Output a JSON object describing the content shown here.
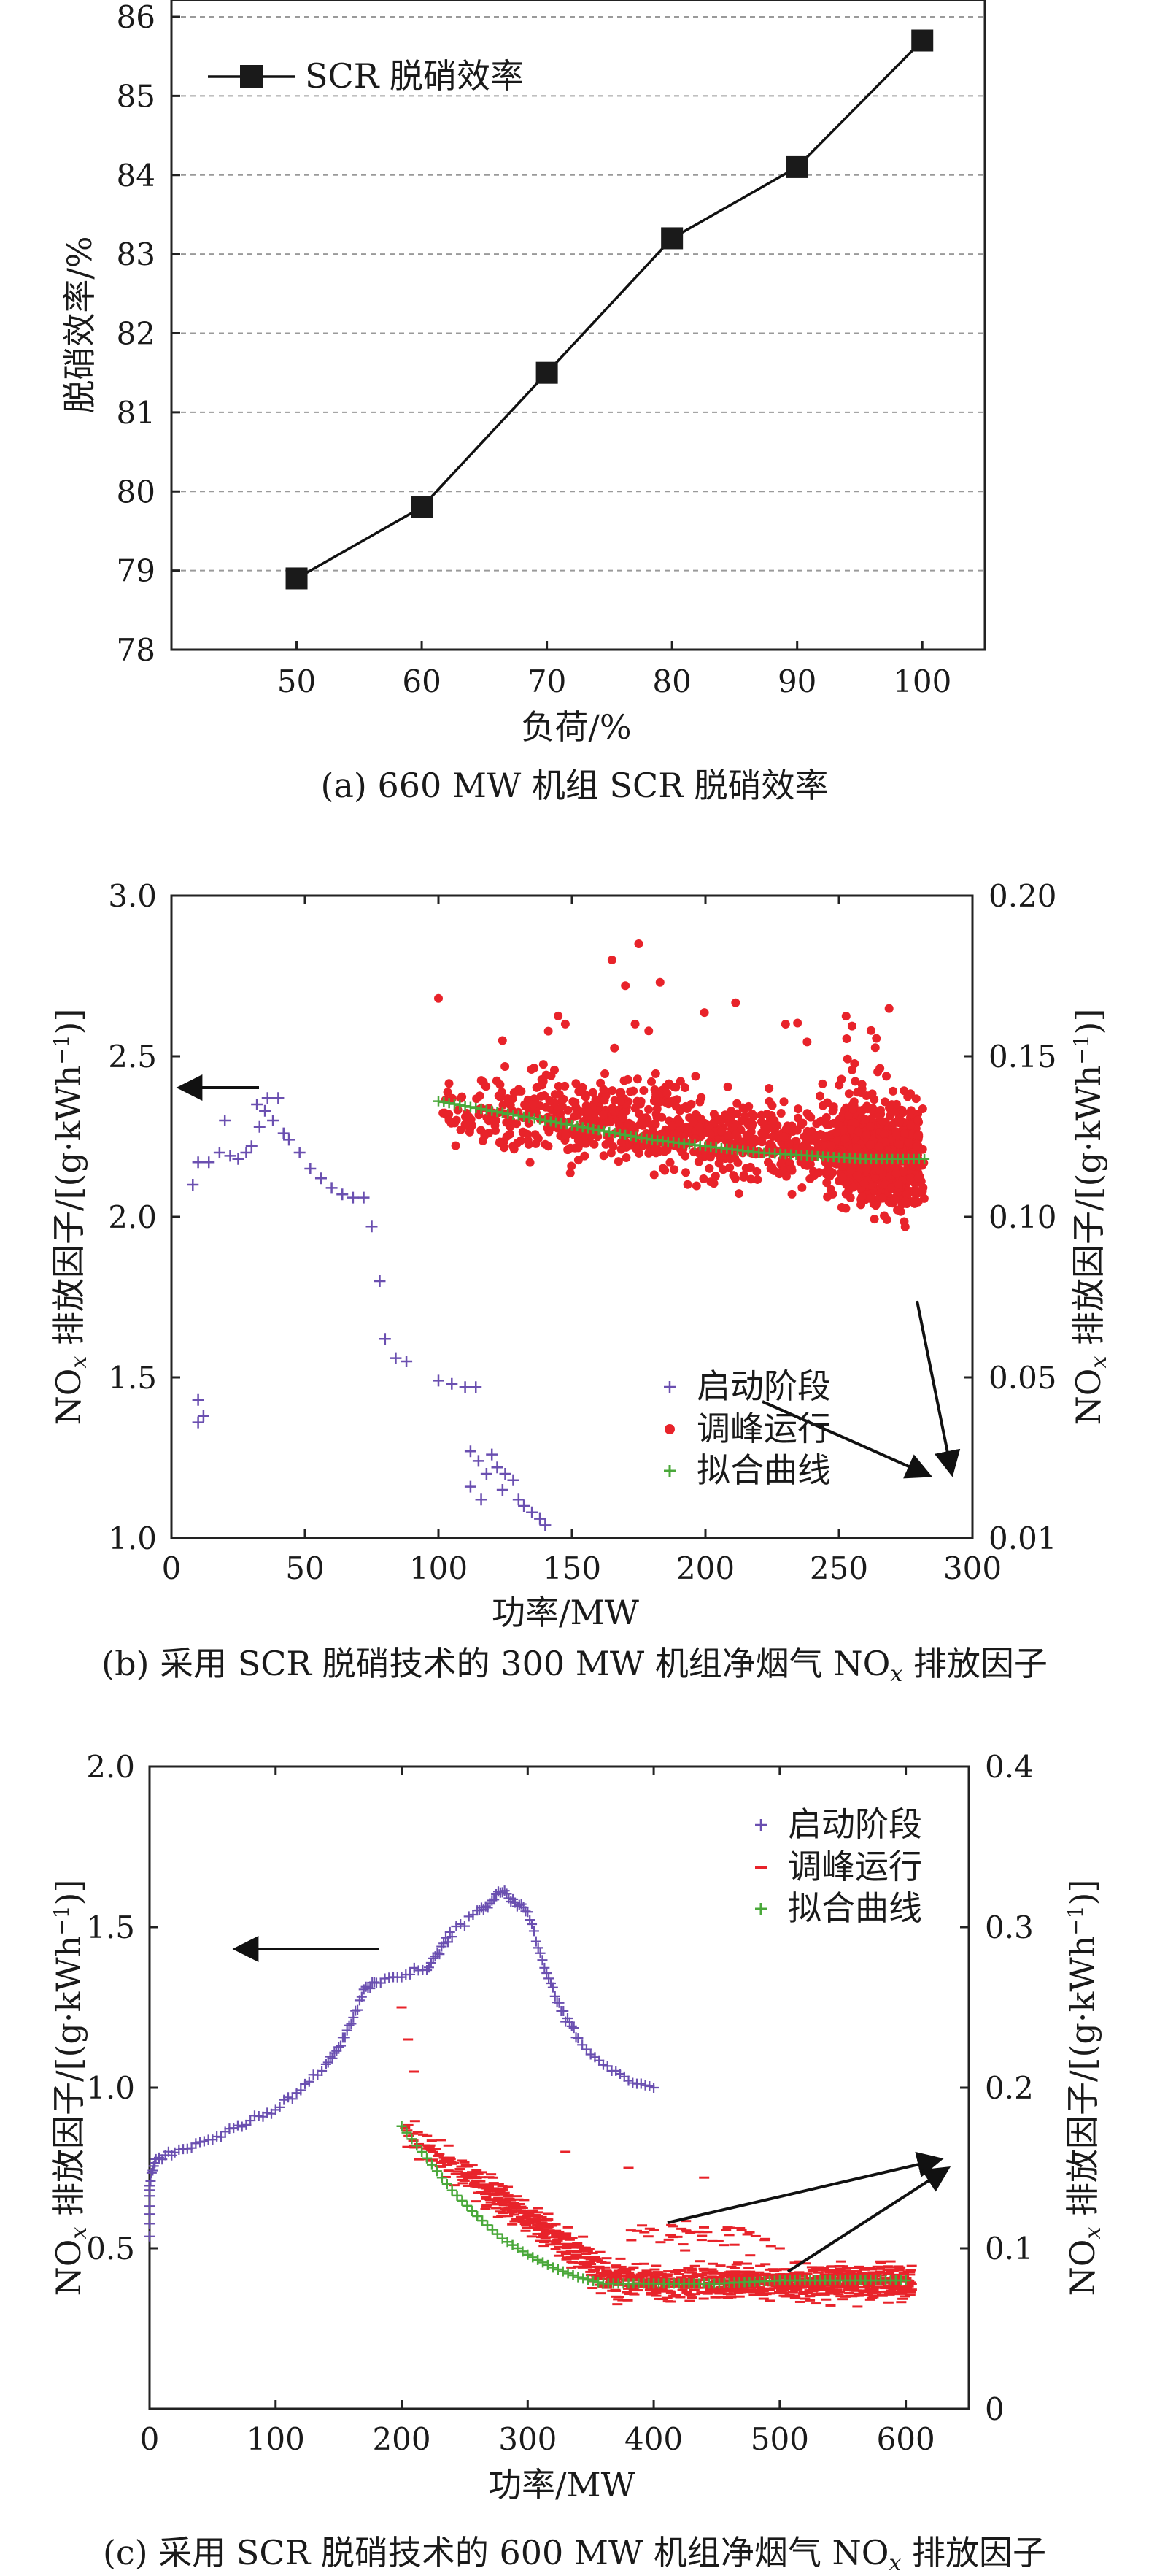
{
  "captions": {
    "a": "(a) 660 MW 机组 SCR 脱硝效率",
    "b_pre": "(b) 采用 SCR 脱硝技术的 300 MW 机组净烟气 NO",
    "b_sub": "x",
    "b_post": " 排放因子",
    "c_pre": "(c) 采用 SCR 脱硝技术的 600 MW 机组净烟气 NO",
    "c_sub": "x",
    "c_post": " 排放因子"
  },
  "chart_data": [
    {
      "id": "a",
      "type": "line",
      "x": [
        50,
        60,
        70,
        80,
        90,
        100
      ],
      "series": [
        {
          "name": "SCR 脱硝效率",
          "values": [
            78.9,
            79.8,
            81.5,
            83.2,
            84.1,
            85.7
          ]
        }
      ],
      "xlabel": "负荷/%",
      "ylabel": "脱硝效率/%",
      "xlim": [
        40,
        105
      ],
      "ylim": [
        78,
        86
      ],
      "xticks": [
        50,
        60,
        70,
        80,
        90,
        100
      ],
      "yticks": [
        78,
        79,
        80,
        81,
        82,
        83,
        84,
        85,
        86
      ],
      "grid": "horizontal dashed",
      "legend": "top-left"
    },
    {
      "id": "b",
      "type": "scatter",
      "xlabel": "功率/MW",
      "ylabel_left": "NO_x 排放因子/[(g·kWh⁻¹)]",
      "ylabel_right": "NO_x 排放因子/[(g·kWh⁻¹)]",
      "xlim": [
        0,
        300
      ],
      "ylim_left": [
        1.0,
        3.0
      ],
      "ylim_right": [
        0.01,
        0.2
      ],
      "xticks": [
        0,
        50,
        100,
        150,
        200,
        250,
        300
      ],
      "yticks_left": [
        "1.0",
        "1.5",
        "2.0",
        "2.5",
        "3.0"
      ],
      "yticks_right": [
        "0.01",
        "0.05",
        "0.10",
        "0.15",
        "0.20"
      ],
      "legend_position": "lower-right",
      "series": [
        {
          "name": "启动阶段",
          "color": "#6a4fb0",
          "marker": "plus",
          "axis": "left",
          "points": [
            [
              10,
              1.43
            ],
            [
              10,
              1.36
            ],
            [
              12,
              1.38
            ],
            [
              8,
              2.1
            ],
            [
              10,
              2.17
            ],
            [
              14,
              2.17
            ],
            [
              18,
              2.2
            ],
            [
              20,
              2.3
            ],
            [
              22,
              2.19
            ],
            [
              25,
              2.18
            ],
            [
              28,
              2.2
            ],
            [
              30,
              2.22
            ],
            [
              32,
              2.35
            ],
            [
              33,
              2.28
            ],
            [
              35,
              2.33
            ],
            [
              36,
              2.37
            ],
            [
              38,
              2.3
            ],
            [
              40,
              2.37
            ],
            [
              42,
              2.26
            ],
            [
              44,
              2.24
            ],
            [
              48,
              2.2
            ],
            [
              52,
              2.15
            ],
            [
              56,
              2.12
            ],
            [
              60,
              2.09
            ],
            [
              64,
              2.07
            ],
            [
              68,
              2.06
            ],
            [
              72,
              2.06
            ],
            [
              75,
              1.97
            ],
            [
              78,
              1.8
            ],
            [
              80,
              1.62
            ],
            [
              84,
              1.56
            ],
            [
              88,
              1.55
            ],
            [
              100,
              1.49
            ],
            [
              105,
              1.48
            ],
            [
              110,
              1.47
            ],
            [
              114,
              1.47
            ],
            [
              112,
              1.27
            ],
            [
              115,
              1.24
            ],
            [
              118,
              1.2
            ],
            [
              120,
              1.26
            ],
            [
              122,
              1.22
            ],
            [
              112,
              1.16
            ],
            [
              125,
              1.2
            ],
            [
              128,
              1.18
            ],
            [
              130,
              1.12
            ],
            [
              132,
              1.1
            ],
            [
              135,
              1.08
            ],
            [
              138,
              1.06
            ],
            [
              140,
              1.04
            ],
            [
              116,
              1.12
            ],
            [
              124,
              1.15
            ]
          ]
        },
        {
          "name": "调峰运行",
          "color": "#e8232a",
          "marker": "dot",
          "axis": "right"
        },
        {
          "name": "拟合曲线",
          "color": "#4aa83a",
          "marker": "plus",
          "axis": "right",
          "points": [
            [
              100,
              0.136
            ],
            [
              120,
              0.133
            ],
            [
              140,
              0.13
            ],
            [
              160,
              0.127
            ],
            [
              180,
              0.124
            ],
            [
              200,
              0.122
            ],
            [
              220,
              0.12
            ],
            [
              240,
              0.119
            ],
            [
              260,
              0.118
            ],
            [
              280,
              0.118
            ]
          ]
        }
      ],
      "annotations": [
        "arrow pointing to left axis from 启动阶段",
        "arrows pointing to right axis from 调峰运行"
      ]
    },
    {
      "id": "c",
      "type": "scatter",
      "xlabel": "功率/MW",
      "ylabel_left": "NO_x 排放因子/[(g·kWh⁻¹)]",
      "ylabel_right": "NO_x 排放因子/[(g·kWh⁻¹)]",
      "xlim": [
        0,
        650
      ],
      "ylim_left": [
        0.0,
        2.0
      ],
      "ylim_right": [
        0,
        0.4
      ],
      "xticks": [
        0,
        100,
        200,
        300,
        400,
        500,
        600
      ],
      "yticks_left": [
        "",
        "0.5",
        "1.0",
        "1.5",
        "2.0"
      ],
      "yticks_right": [
        "0",
        "0.1",
        "0.2",
        "0.3",
        "0.4"
      ],
      "legend_position": "top-right",
      "series": [
        {
          "name": "启动阶段",
          "color": "#6a4fb0",
          "marker": "plus",
          "axis": "left",
          "points": [
            [
              0,
              0.55
            ],
            [
              0,
              0.7
            ],
            [
              5,
              0.78
            ],
            [
              20,
              0.8
            ],
            [
              40,
              0.83
            ],
            [
              60,
              0.86
            ],
            [
              80,
              0.9
            ],
            [
              100,
              0.93
            ],
            [
              120,
              1.0
            ],
            [
              140,
              1.07
            ],
            [
              150,
              1.12
            ],
            [
              160,
              1.2
            ],
            [
              170,
              1.3
            ],
            [
              180,
              1.33
            ],
            [
              200,
              1.35
            ],
            [
              220,
              1.37
            ],
            [
              230,
              1.43
            ],
            [
              240,
              1.48
            ],
            [
              260,
              1.55
            ],
            [
              270,
              1.57
            ],
            [
              280,
              1.62
            ],
            [
              290,
              1.58
            ],
            [
              300,
              1.55
            ],
            [
              310,
              1.42
            ],
            [
              320,
              1.3
            ],
            [
              330,
              1.22
            ],
            [
              340,
              1.15
            ],
            [
              360,
              1.07
            ],
            [
              380,
              1.03
            ],
            [
              400,
              1.0
            ]
          ]
        },
        {
          "name": "调峰运行",
          "color": "#e8232a",
          "marker": "dot",
          "axis": "left"
        },
        {
          "name": "拟合曲线",
          "color": "#4aa83a",
          "marker": "plus",
          "axis": "left",
          "points": [
            [
              200,
              0.88
            ],
            [
              220,
              0.78
            ],
            [
              240,
              0.68
            ],
            [
              260,
              0.6
            ],
            [
              280,
              0.53
            ],
            [
              300,
              0.48
            ],
            [
              320,
              0.44
            ],
            [
              340,
              0.41
            ],
            [
              360,
              0.39
            ],
            [
              380,
              0.39
            ],
            [
              400,
              0.39
            ],
            [
              450,
              0.39
            ],
            [
              500,
              0.4
            ],
            [
              550,
              0.4
            ],
            [
              600,
              0.4
            ]
          ]
        }
      ],
      "annotations": [
        "arrow pointing to left axis from 启动阶段",
        "arrows pointing to right axis from 调峰运行"
      ]
    }
  ]
}
